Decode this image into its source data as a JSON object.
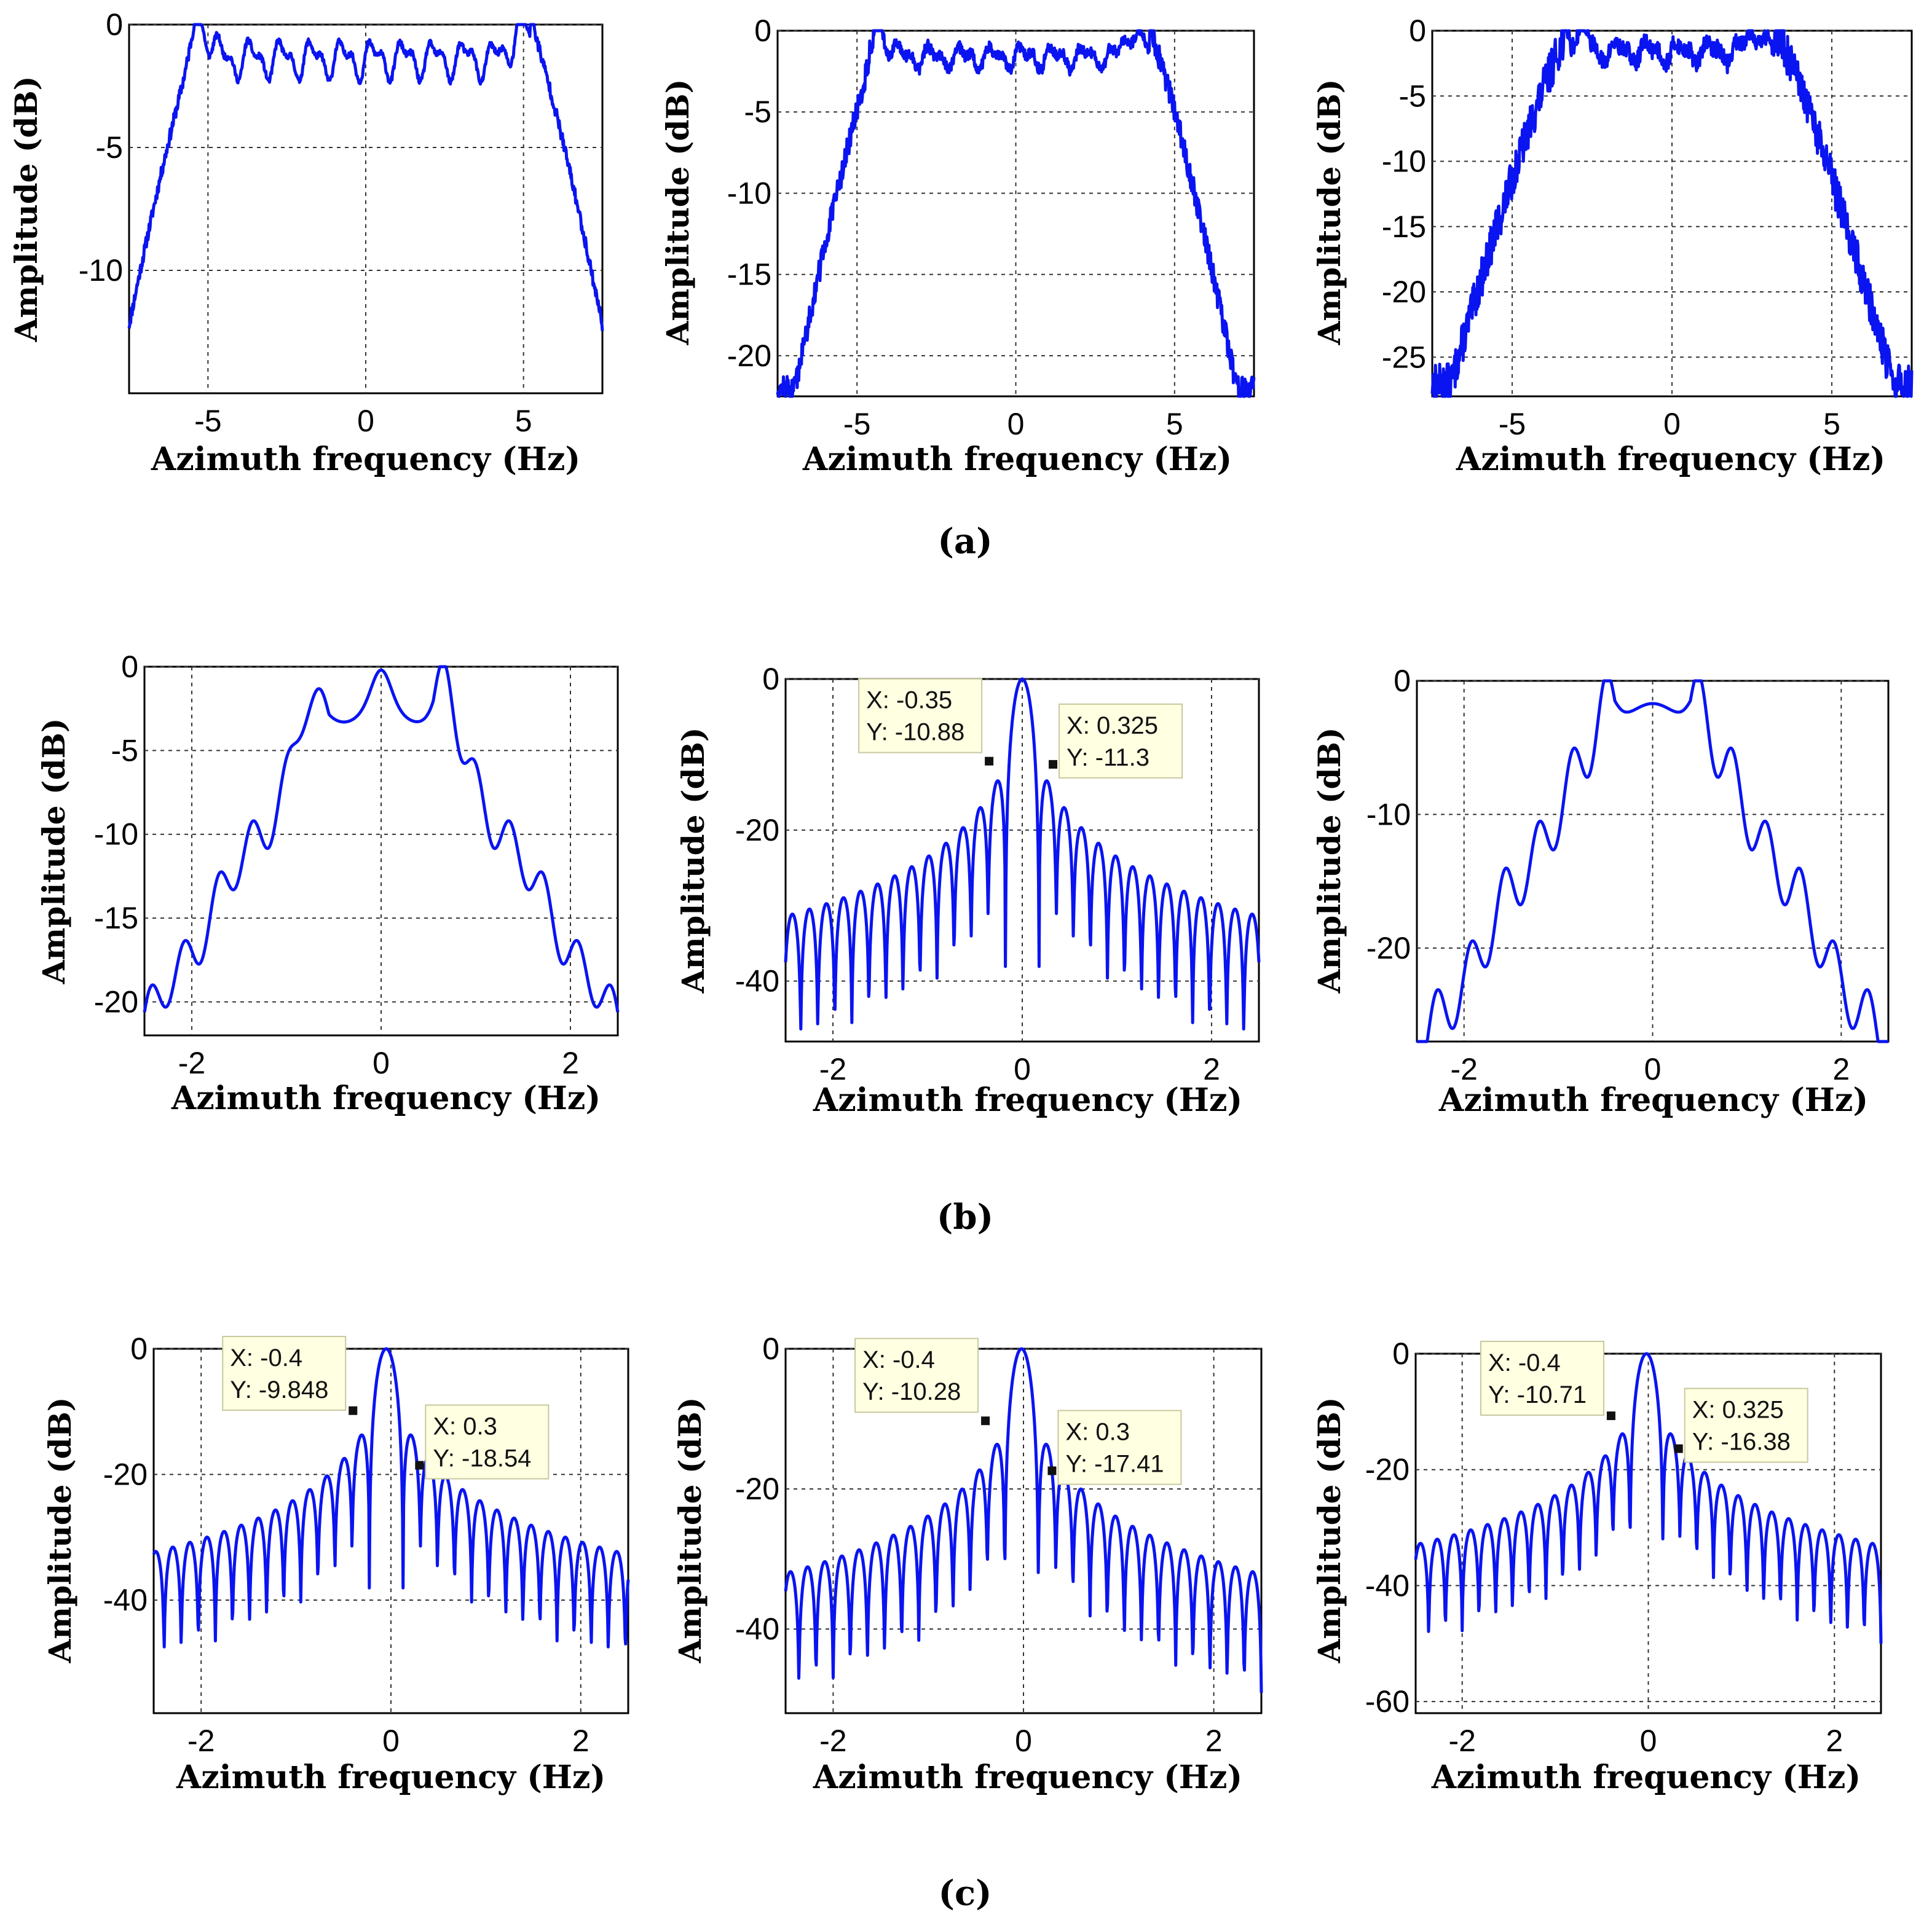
{
  "figure": {
    "captions": [
      "(a)",
      "(b)",
      "(c)"
    ]
  },
  "chart_data": [
    {
      "id": "a1",
      "type": "line",
      "profile": "flat",
      "seed": 11,
      "title": "",
      "xlabel": "Azimuth frequency (Hz)",
      "ylabel": "Amplitude (dB)",
      "xlim": [
        -7.5,
        7.5
      ],
      "ylim": [
        -15,
        0
      ],
      "xticks": [
        -5,
        0,
        5
      ],
      "xtick_labels": [
        "-5",
        "0",
        "5"
      ],
      "yticks": [
        0,
        -5,
        -10
      ],
      "ytick_labels": [
        "0",
        "-5",
        "-10"
      ],
      "grid": true,
      "series_color": "#0a14f0",
      "shape": {
        "xr": 5.2,
        "width": 0.45,
        "fall": 4.5,
        "floor": -15,
        "ripple": 0.6,
        "dip": 1.4,
        "peaks": [
          -5.2,
          4.9
        ],
        "noise": 0.12
      },
      "annotations": []
    },
    {
      "id": "a2",
      "type": "line",
      "profile": "flat",
      "seed": 12,
      "title": "",
      "xlabel": "Azimuth frequency (Hz)",
      "ylabel": "Amplitude (dB)",
      "xlim": [
        -7.5,
        7.5
      ],
      "ylim": [
        -22.5,
        0
      ],
      "xticks": [
        -5,
        0,
        5
      ],
      "xtick_labels": [
        "-5",
        "0",
        "5"
      ],
      "yticks": [
        0,
        -5,
        -10,
        -15,
        -20
      ],
      "ytick_labels": [
        "0",
        "-5",
        "-10",
        "-15",
        "-20"
      ],
      "grid": true,
      "series_color": "#0a14f0",
      "shape": {
        "xr": 4.2,
        "width": 0.6,
        "fall": 6.5,
        "floor": -22,
        "ripple": 0.5,
        "dip": 1.6,
        "peaks": [
          -4.3,
          3.7
        ],
        "noise": 0.35
      },
      "annotations": []
    },
    {
      "id": "a3",
      "type": "line",
      "profile": "flat",
      "seed": 13,
      "title": "",
      "xlabel": "Azimuth frequency (Hz)",
      "ylabel": "Amplitude (dB)",
      "xlim": [
        -7.5,
        7.5
      ],
      "ylim": [
        -28,
        0
      ],
      "xticks": [
        -5,
        0,
        5
      ],
      "xtick_labels": [
        "-5",
        "0",
        "5"
      ],
      "yticks": [
        0,
        -5,
        -10,
        -15,
        -20,
        -25
      ],
      "ytick_labels": [
        "0",
        "-5",
        "-10",
        "-15",
        "-20",
        "-25"
      ],
      "grid": true,
      "series_color": "#0a14f0",
      "shape": {
        "xr": 3.2,
        "width": 0.65,
        "fall": 5.6,
        "floor": -27,
        "ripple": 0.6,
        "dip": 1.6,
        "peaks": [
          -2.9,
          2.6
        ],
        "noise": 0.7
      },
      "annotations": []
    },
    {
      "id": "b1",
      "type": "line",
      "profile": "stepped",
      "seed": 21,
      "title": "",
      "xlabel": "Azimuth frequency (Hz)",
      "ylabel": "Amplitude (dB)",
      "xlim": [
        -2.5,
        2.5
      ],
      "ylim": [
        -22,
        0
      ],
      "xticks": [
        -2,
        0,
        2
      ],
      "xtick_labels": [
        "-2",
        "0",
        "2"
      ],
      "yticks": [
        0,
        -5,
        -10,
        -15,
        -20
      ],
      "ytick_labels": [
        "0",
        "-5",
        "-10",
        "-15",
        "-20"
      ],
      "grid": true,
      "series_color": "#0a14f0",
      "shape": {
        "plateau": 0.55,
        "slope": 9.6,
        "step": 0.18,
        "stepAmp": 1.4,
        "bumps": [
          [
            -0.8,
            2.6
          ],
          [
            0.0,
            2.1
          ],
          [
            0.7,
            2.8
          ]
        ],
        "base": -2.8,
        "floor": -22
      },
      "annotations": []
    },
    {
      "id": "b2",
      "type": "line",
      "profile": "sidelobe",
      "seed": 22,
      "title": "",
      "xlabel": "Azimuth frequency (Hz)",
      "ylabel": "Amplitude (dB)",
      "xlim": [
        -2.5,
        2.5
      ],
      "ylim": [
        -48,
        0
      ],
      "xticks": [
        -2,
        0,
        2
      ],
      "xtick_labels": [
        "-2",
        "0",
        "2"
      ],
      "yticks": [
        0,
        -20,
        -40
      ],
      "ytick_labels": [
        "0",
        "-20",
        "-40"
      ],
      "grid": true,
      "series_color": "#0a14f0",
      "shape": {
        "x0": 0.0,
        "lobe": 0.18,
        "scale": 10.0,
        "nullDepth": 12,
        "floor": -48
      },
      "annotations": [
        {
          "x": -0.35,
          "y": -10.88,
          "label_x": "X: -0.35",
          "label_y": "Y: -10.88",
          "side": "upper-left"
        },
        {
          "x": 0.325,
          "y": -11.3,
          "label_x": "X: 0.325",
          "label_y": "Y: -11.3",
          "side": "upper-right"
        }
      ]
    },
    {
      "id": "b3",
      "type": "line",
      "profile": "stepped",
      "seed": 23,
      "title": "",
      "xlabel": "Azimuth frequency (Hz)",
      "ylabel": "Amplitude (dB)",
      "xlim": [
        -2.5,
        2.5
      ],
      "ylim": [
        -27,
        0
      ],
      "xticks": [
        -2,
        0,
        2
      ],
      "xtick_labels": [
        "-2",
        "0",
        "2"
      ],
      "yticks": [
        0,
        -10,
        -20
      ],
      "ytick_labels": [
        "0",
        "-10",
        "-20"
      ],
      "grid": true,
      "series_color": "#0a14f0",
      "shape": {
        "plateau": 0.4,
        "slope": 12.5,
        "step": 0.18,
        "stepAmp": 2.2,
        "bumps": [
          [
            -0.5,
            2.0
          ],
          [
            0.5,
            2.0
          ]
        ],
        "base": -2.2,
        "floor": -27
      },
      "annotations": []
    },
    {
      "id": "c1",
      "type": "line",
      "profile": "sidelobe",
      "seed": 31,
      "title": "",
      "xlabel": "Azimuth frequency (Hz)",
      "ylabel": "Amplitude (dB)",
      "xlim": [
        -2.5,
        2.5
      ],
      "ylim": [
        -58,
        0
      ],
      "xticks": [
        -2,
        0,
        2
      ],
      "xtick_labels": [
        "-2",
        "0",
        "2"
      ],
      "yticks": [
        0,
        -20,
        -40
      ],
      "ytick_labels": [
        "0",
        "-20",
        "-40"
      ],
      "grid": true,
      "series_color": "#0a14f0",
      "shape": {
        "x0": -0.05,
        "lobe": 0.18,
        "scale": 10.5,
        "nullDepth": 14,
        "floor": -58
      },
      "annotations": [
        {
          "x": -0.4,
          "y": -9.848,
          "label_x": "X: -0.4",
          "label_y": "Y: -9.848",
          "side": "upper-left"
        },
        {
          "x": 0.3,
          "y": -18.54,
          "label_x": "X: 0.3",
          "label_y": "Y: -18.54",
          "side": "upper-right"
        }
      ]
    },
    {
      "id": "c2",
      "type": "line",
      "profile": "sidelobe",
      "seed": 32,
      "title": "",
      "xlabel": "Azimuth frequency (Hz)",
      "ylabel": "Amplitude (dB)",
      "xlim": [
        -2.5,
        2.5
      ],
      "ylim": [
        -52,
        0
      ],
      "xticks": [
        -2,
        0,
        2
      ],
      "xtick_labels": [
        "-2",
        "0",
        "2"
      ],
      "yticks": [
        0,
        -20,
        -40
      ],
      "ytick_labels": [
        "0",
        "-20",
        "-40"
      ],
      "grid": true,
      "series_color": "#0a14f0",
      "shape": {
        "x0": -0.02,
        "lobe": 0.18,
        "scale": 10.3,
        "nullDepth": 14,
        "floor": -52
      },
      "annotations": [
        {
          "x": -0.4,
          "y": -10.28,
          "label_x": "X: -0.4",
          "label_y": "Y: -10.28",
          "side": "upper-left"
        },
        {
          "x": 0.3,
          "y": -17.41,
          "label_x": "X: 0.3",
          "label_y": "Y: -17.41",
          "side": "upper-right"
        }
      ]
    },
    {
      "id": "c3",
      "type": "line",
      "profile": "sidelobe",
      "seed": 33,
      "title": "",
      "xlabel": "Azimuth frequency (Hz)",
      "ylabel": "Amplitude (dB)",
      "xlim": [
        -2.5,
        2.5
      ],
      "ylim": [
        -62,
        0
      ],
      "xticks": [
        -2,
        0,
        2
      ],
      "xtick_labels": [
        "-2",
        "0",
        "2"
      ],
      "yticks": [
        0,
        -20,
        -40,
        -60
      ],
      "ytick_labels": [
        "0",
        "-20",
        "-40",
        "-60"
      ],
      "grid": true,
      "series_color": "#0a14f0",
      "shape": {
        "x0": -0.02,
        "lobe": 0.18,
        "scale": 10.7,
        "nullDepth": 16,
        "floor": -62
      },
      "annotations": [
        {
          "x": -0.4,
          "y": -10.71,
          "label_x": "X: -0.4",
          "label_y": "Y: -10.71",
          "side": "upper-left"
        },
        {
          "x": 0.325,
          "y": -16.38,
          "label_x": "X: 0.325",
          "label_y": "Y: -16.38",
          "side": "upper-right"
        }
      ]
    }
  ]
}
